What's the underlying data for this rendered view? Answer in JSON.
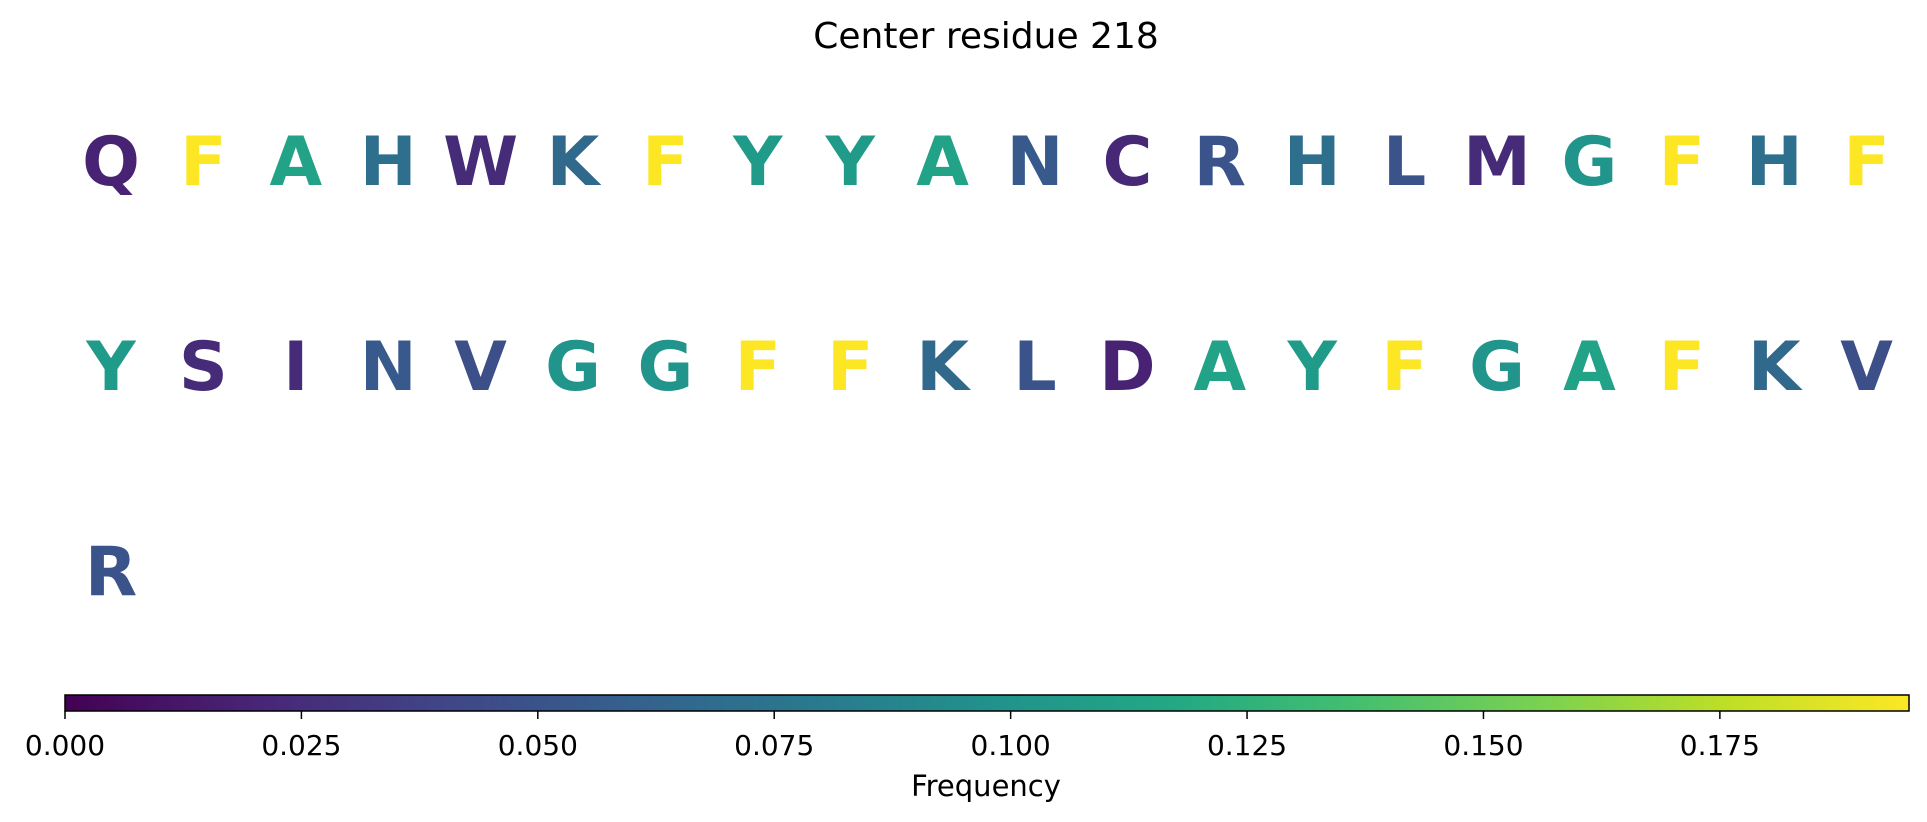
{
  "chart_data": {
    "type": "table",
    "title": "Center residue 218",
    "colormap": "viridis",
    "residues": [
      {
        "letter": "Q",
        "value": 0.019
      },
      {
        "letter": "F",
        "value": 0.195
      },
      {
        "letter": "A",
        "value": 0.112
      },
      {
        "letter": "H",
        "value": 0.071
      },
      {
        "letter": "W",
        "value": 0.024
      },
      {
        "letter": "K",
        "value": 0.066
      },
      {
        "letter": "F",
        "value": 0.195
      },
      {
        "letter": "Y",
        "value": 0.106
      },
      {
        "letter": "Y",
        "value": 0.106
      },
      {
        "letter": "A",
        "value": 0.112
      },
      {
        "letter": "N",
        "value": 0.054
      },
      {
        "letter": "C",
        "value": 0.022
      },
      {
        "letter": "R",
        "value": 0.05
      },
      {
        "letter": "H",
        "value": 0.071
      },
      {
        "letter": "L",
        "value": 0.05
      },
      {
        "letter": "M",
        "value": 0.024
      },
      {
        "letter": "G",
        "value": 0.1
      },
      {
        "letter": "F",
        "value": 0.195
      },
      {
        "letter": "H",
        "value": 0.071
      },
      {
        "letter": "F",
        "value": 0.195
      },
      {
        "letter": "Y",
        "value": 0.106
      },
      {
        "letter": "S",
        "value": 0.024
      },
      {
        "letter": "I",
        "value": 0.024
      },
      {
        "letter": "N",
        "value": 0.054
      },
      {
        "letter": "V",
        "value": 0.047
      },
      {
        "letter": "G",
        "value": 0.1
      },
      {
        "letter": "G",
        "value": 0.1
      },
      {
        "letter": "F",
        "value": 0.195
      },
      {
        "letter": "F",
        "value": 0.195
      },
      {
        "letter": "K",
        "value": 0.066
      },
      {
        "letter": "L",
        "value": 0.05
      },
      {
        "letter": "D",
        "value": 0.019
      },
      {
        "letter": "A",
        "value": 0.112
      },
      {
        "letter": "Y",
        "value": 0.106
      },
      {
        "letter": "F",
        "value": 0.195
      },
      {
        "letter": "G",
        "value": 0.1
      },
      {
        "letter": "A",
        "value": 0.112
      },
      {
        "letter": "F",
        "value": 0.195
      },
      {
        "letter": "K",
        "value": 0.066
      },
      {
        "letter": "V",
        "value": 0.047
      },
      {
        "letter": "R",
        "value": 0.05
      }
    ],
    "colorbar": {
      "label": "Frequency",
      "range": [
        0,
        0.195
      ],
      "ticks": [
        {
          "value": 0.0,
          "label": "0.000"
        },
        {
          "value": 0.025,
          "label": "0.025"
        },
        {
          "value": 0.05,
          "label": "0.050"
        },
        {
          "value": 0.075,
          "label": "0.075"
        },
        {
          "value": 0.1,
          "label": "0.100"
        },
        {
          "value": 0.125,
          "label": "0.125"
        },
        {
          "value": 0.15,
          "label": "0.150"
        },
        {
          "value": 0.175,
          "label": "0.175"
        }
      ],
      "orientation": "horizontal",
      "placement": "bottom"
    }
  }
}
